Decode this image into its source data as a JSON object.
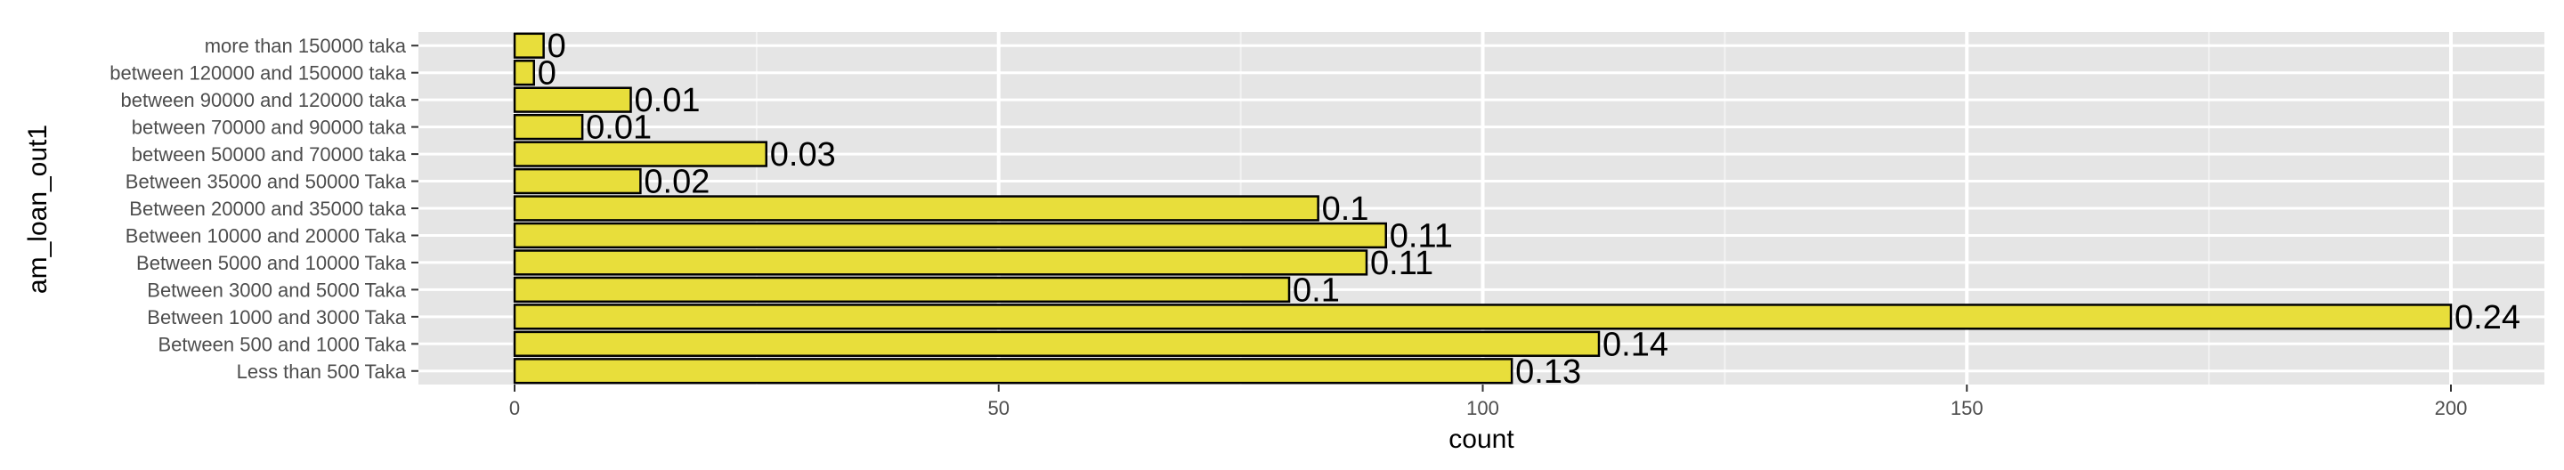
{
  "chart_data": {
    "type": "bar",
    "orientation": "horizontal",
    "xlabel": "count",
    "ylabel": "am_loan_out1",
    "xlim": [
      -10,
      210
    ],
    "x_ticks": [
      0,
      50,
      100,
      150,
      200
    ],
    "grid": true,
    "bar_color": "#E8DE3B",
    "bar_border_color": "#000000",
    "panel_color": "#E5E5E5",
    "categories": [
      "Less than 500 Taka",
      "Between 500 and 1000 Taka",
      "Between 1000 and 3000 Taka",
      "Between 3000 and 5000 Taka",
      "Between 5000 and 10000 Taka",
      "Between 10000 and 20000 Taka",
      "Between 20000 and 35000 taka",
      "Between 35000 and 50000 Taka",
      "between 50000 and 70000 taka",
      "between 70000 and 90000 taka",
      "between 90000 and 120000 taka",
      "between 120000 and 150000 taka",
      "more than 150000 taka"
    ],
    "values": [
      103,
      112,
      200,
      80,
      88,
      90,
      83,
      13,
      26,
      7,
      12,
      2,
      3
    ],
    "data_labels": [
      "0.13",
      "0.14",
      "0.24",
      "0.1",
      "0.11",
      "0.11",
      "0.1",
      "0.02",
      "0.03",
      "0.01",
      "0.01",
      "0",
      "0"
    ]
  }
}
